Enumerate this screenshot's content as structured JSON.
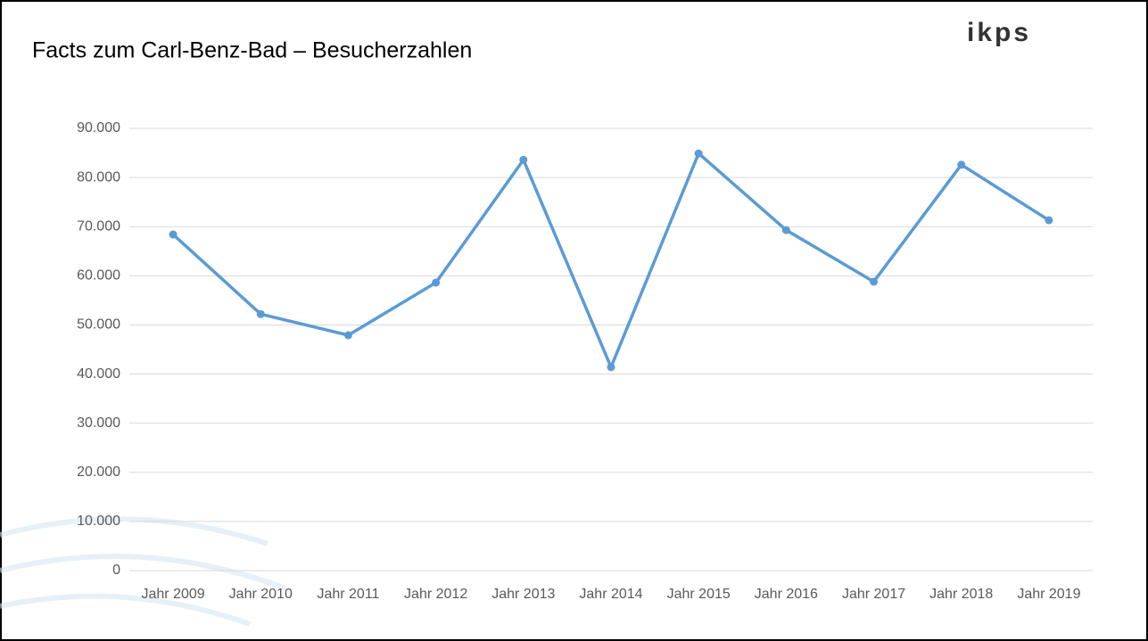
{
  "chart_data": {
    "type": "line",
    "title": "Facts zum Carl-Benz-Bad – Besucherzahlen",
    "logo": "ikps",
    "categories": [
      "Jahr 2009",
      "Jahr 2010",
      "Jahr 2011",
      "Jahr 2012",
      "Jahr 2013",
      "Jahr 2014",
      "Jahr 2015",
      "Jahr 2016",
      "Jahr 2017",
      "Jahr 2018",
      "Jahr 2019"
    ],
    "series": [
      {
        "name": "Besucher",
        "color": "#5b9bd5",
        "values": [
          68400,
          52200,
          47900,
          58600,
          83600,
          41400,
          84900,
          69300,
          58800,
          82600,
          71300
        ]
      }
    ],
    "ylim": [
      0,
      90000
    ],
    "yticks": [
      0,
      {
        "value": 10000,
        "label": "10.000"
      },
      {
        "value": 20000,
        "label": "20.000"
      },
      {
        "value": 30000,
        "label": "30.000"
      },
      {
        "value": 40000,
        "label": "40.000"
      },
      {
        "value": 50000,
        "label": "50.000"
      },
      {
        "value": 60000,
        "label": "60.000"
      },
      {
        "value": 70000,
        "label": "70.000"
      },
      {
        "value": 80000,
        "label": "80.000"
      },
      {
        "value": 90000,
        "label": "90.000"
      }
    ],
    "grid": true
  }
}
